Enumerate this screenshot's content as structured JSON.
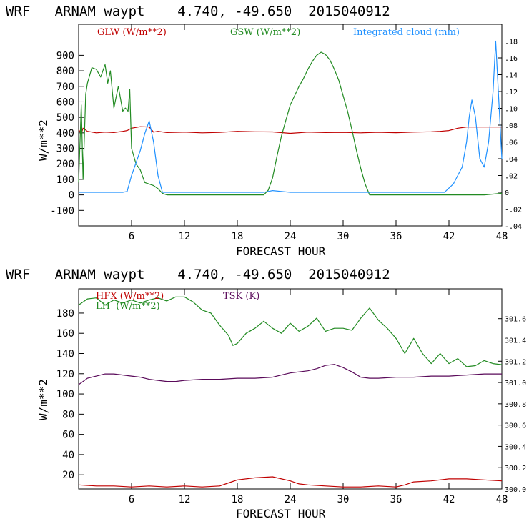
{
  "chart_data": [
    {
      "type": "line",
      "title": "WRF   ARNAM waypt    4.740, -49.650  2015040912",
      "xlabel": "FORECAST HOUR",
      "ylabel": "W/m**2",
      "xlim": [
        0,
        48
      ],
      "ylim": [
        -200,
        1100
      ],
      "y2lim": [
        -0.04,
        0.2
      ],
      "x_ticks": [
        6,
        12,
        18,
        24,
        30,
        36,
        42,
        48
      ],
      "y_ticks": [
        -100,
        0,
        100,
        200,
        300,
        400,
        500,
        600,
        700,
        800,
        900
      ],
      "y2_ticks": [
        -0.04,
        -0.02,
        0,
        0.02,
        0.04,
        0.06,
        0.08,
        0.1,
        0.12,
        0.14,
        0.16,
        0.18
      ],
      "y2_tick_labels": [
        "-.04",
        "-.02",
        "0",
        ".02",
        ".04",
        ".06",
        ".08",
        ".10",
        ".12",
        ".14",
        ".16",
        ".18"
      ],
      "series": [
        {
          "name": "GLW (W/m**2)",
          "color": "#c00000",
          "axis": "left",
          "x": [
            0,
            0.3,
            0.5,
            1,
            2,
            3,
            4,
            5,
            5.5,
            6,
            7,
            8,
            8.5,
            9,
            10,
            12,
            14,
            16,
            18,
            20,
            22,
            24,
            26,
            28,
            30,
            32,
            34,
            36,
            38,
            40,
            41,
            42,
            43,
            44,
            46,
            48
          ],
          "y": [
            420,
            395,
            430,
            410,
            400,
            405,
            402,
            410,
            415,
            430,
            440,
            438,
            405,
            410,
            402,
            405,
            400,
            403,
            410,
            407,
            406,
            397,
            405,
            402,
            403,
            400,
            404,
            401,
            405,
            407,
            410,
            415,
            430,
            438,
            438,
            438
          ]
        },
        {
          "name": "GSW (W/m**2)",
          "color": "#228b22",
          "axis": "left",
          "x": [
            0,
            0.3,
            0.5,
            0.8,
            1,
            1.5,
            2,
            2.5,
            3,
            3.3,
            3.6,
            4,
            4.5,
            5,
            5.3,
            5.6,
            5.8,
            6,
            6.5,
            7,
            7.5,
            8,
            8.5,
            9,
            9.5,
            10,
            12,
            14,
            16,
            18,
            20,
            21,
            21.5,
            22,
            22.5,
            23,
            23.5,
            24,
            24.5,
            25,
            25.5,
            26,
            26.5,
            27,
            27.5,
            28,
            28.5,
            29,
            29.5,
            30,
            30.5,
            31,
            31.5,
            32,
            32.5,
            33,
            33.5,
            34,
            36,
            40,
            44,
            46,
            47,
            48
          ],
          "y": [
            80,
            580,
            100,
            650,
            720,
            820,
            810,
            760,
            840,
            720,
            800,
            560,
            700,
            540,
            560,
            540,
            680,
            300,
            200,
            160,
            80,
            70,
            60,
            40,
            10,
            0,
            0,
            0,
            0,
            0,
            0,
            0,
            30,
            110,
            250,
            380,
            480,
            580,
            640,
            700,
            750,
            810,
            860,
            900,
            920,
            905,
            870,
            810,
            740,
            640,
            540,
            420,
            290,
            170,
            70,
            0,
            0,
            0,
            0,
            0,
            0,
            0,
            5,
            10
          ]
        },
        {
          "name": "Integrated cloud (mm)",
          "color": "#1e90ff",
          "axis": "right",
          "x": [
            0,
            4,
            5,
            5.5,
            6,
            6.5,
            7,
            7.5,
            8,
            8.5,
            9,
            9.5,
            10,
            20,
            21,
            21.5,
            22,
            23,
            24,
            26,
            28,
            30,
            32,
            34,
            36,
            38,
            40,
            41.5,
            42,
            42.5,
            43,
            43.5,
            44,
            44.3,
            44.6,
            45,
            45.5,
            46,
            46.5,
            47,
            47.3,
            47.6,
            48
          ],
          "y": [
            0,
            0,
            0,
            0.001,
            0.02,
            0.035,
            0.05,
            0.07,
            0.085,
            0.06,
            0.02,
            0,
            0,
            0,
            0,
            0.001,
            0.002,
            0.001,
            0,
            0,
            0,
            0,
            0,
            0,
            0,
            0,
            0,
            0,
            0.005,
            0.01,
            0.02,
            0.03,
            0.06,
            0.09,
            0.11,
            0.09,
            0.04,
            0.03,
            0.06,
            0.12,
            0.18,
            0.12,
            0.04
          ]
        }
      ]
    },
    {
      "type": "line",
      "title": "WRF   ARNAM waypt    4.740, -49.650  2015040912",
      "xlabel": "FORECAST HOUR",
      "ylabel": "W/m**2",
      "xlim": [
        0,
        48
      ],
      "ylim": [
        6,
        204
      ],
      "y2lim": [
        300.0,
        301.88
      ],
      "x_ticks": [
        6,
        12,
        18,
        24,
        30,
        36,
        42,
        48
      ],
      "y_ticks": [
        20,
        40,
        60,
        80,
        100,
        120,
        140,
        160,
        180
      ],
      "y2_ticks": [
        300.0,
        300.2,
        300.4,
        300.6,
        300.8,
        301.0,
        301.2,
        301.4,
        301.6
      ],
      "y2_tick_labels": [
        "300.0",
        "300.2",
        "300.4",
        "300.6",
        "300.8",
        "301.0",
        "301.2",
        "301.4",
        "301.6"
      ],
      "series": [
        {
          "name": "HFX (W/m**2)",
          "color": "#c00000",
          "axis": "left",
          "x": [
            0,
            2,
            4,
            6,
            8,
            10,
            12,
            14,
            16,
            17,
            18,
            20,
            22,
            24,
            25,
            26,
            28,
            30,
            32,
            34,
            36,
            37,
            38,
            40,
            42,
            44,
            46,
            48
          ],
          "y": [
            10,
            9,
            9,
            8,
            9,
            8,
            9,
            8,
            9,
            12,
            15,
            17,
            18,
            14,
            11,
            10,
            9,
            8,
            8,
            9,
            8,
            10,
            13,
            14,
            16,
            16,
            15,
            14
          ]
        },
        {
          "name": "LH  (W/m**2)",
          "color": "#228b22",
          "axis": "left",
          "x": [
            0,
            1,
            2,
            3,
            4,
            5,
            6,
            7,
            8,
            9,
            10,
            11,
            12,
            13,
            14,
            15,
            16,
            17,
            17.5,
            18,
            19,
            20,
            21,
            22,
            23,
            24,
            25,
            26,
            27,
            28,
            29,
            30,
            31,
            32,
            33,
            34,
            35,
            36,
            37,
            38,
            39,
            40,
            41,
            42,
            43,
            44,
            45,
            46,
            47,
            48
          ],
          "y": [
            188,
            194,
            195,
            188,
            193,
            190,
            193,
            190,
            193,
            195,
            192,
            196,
            196,
            191,
            183,
            180,
            168,
            158,
            148,
            150,
            160,
            165,
            172,
            165,
            160,
            170,
            162,
            167,
            175,
            162,
            165,
            165,
            163,
            175,
            185,
            173,
            165,
            155,
            140,
            155,
            140,
            130,
            140,
            130,
            135,
            127,
            128,
            133,
            130,
            129
          ]
        },
        {
          "name": "TSK (K)",
          "color": "#5a0a5a",
          "axis": "right",
          "x": [
            0,
            0.5,
            1,
            1.5,
            2,
            2.5,
            3,
            4,
            5,
            6,
            7,
            8,
            9,
            10,
            11,
            12,
            14,
            16,
            18,
            20,
            22,
            23,
            24,
            25,
            26,
            27,
            28,
            29,
            30,
            31,
            32,
            33,
            34,
            36,
            38,
            40,
            42,
            44,
            46,
            48
          ],
          "y": [
            300.98,
            301.01,
            301.04,
            301.05,
            301.06,
            301.07,
            301.08,
            301.08,
            301.07,
            301.06,
            301.05,
            301.03,
            301.02,
            301.01,
            301.01,
            301.02,
            301.03,
            301.03,
            301.04,
            301.04,
            301.05,
            301.07,
            301.09,
            301.1,
            301.11,
            301.13,
            301.16,
            301.17,
            301.14,
            301.1,
            301.05,
            301.04,
            301.04,
            301.05,
            301.05,
            301.06,
            301.06,
            301.07,
            301.08,
            301.08
          ]
        }
      ]
    }
  ]
}
